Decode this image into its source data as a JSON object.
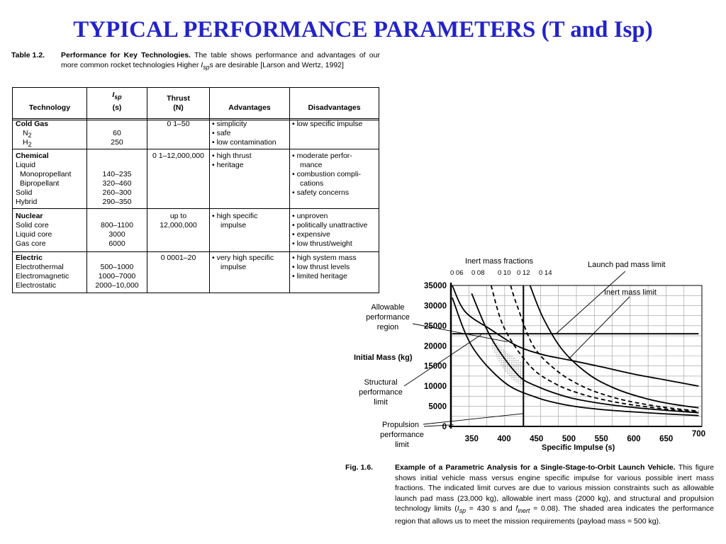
{
  "page": {
    "title": "TYPICAL PERFORMANCE PARAMETERS (T and Isp)"
  },
  "table": {
    "caption_number": "Table 1.2.",
    "caption_title": "Performance for Key Technologies.",
    "caption_text_1": "The table shows performance and advantages of our more common rocket technologies Higher ",
    "caption_isp_main": "I",
    "caption_isp_sub": "sp",
    "caption_text_2": "s are desirable [Larson and Wertz, 1992]",
    "headers": {
      "technology": "Technology",
      "isp_main": "I",
      "isp_sub": "sp",
      "isp_unit": "(s)",
      "thrust": "Thrust",
      "thrust_unit": "(N)",
      "advantages": "Advantages",
      "disadvantages": "Disadvantages"
    },
    "cold_gas": {
      "name": "Cold Gas",
      "n2_main": "N",
      "n2_sub": "2",
      "h2_main": "H",
      "h2_sub": "2",
      "n2_isp": "60",
      "h2_isp": "250",
      "thrust": "0 1–50",
      "adv_1": "• simplicity",
      "adv_2": "• safe",
      "adv_3": "• low contamination",
      "dis_1": "• low specific impulse"
    },
    "chemical": {
      "name": "Chemical",
      "row_1": "Liquid",
      "row_2": "Monopropellant",
      "row_3": "Bipropellant",
      "row_4": "Solid",
      "row_5": "Hybrid",
      "isp_2": "140–235",
      "isp_3": "320–460",
      "isp_4": "260–300",
      "isp_5": "290–350",
      "thrust": "0 1–12,000,000",
      "adv_1": "• high thrust",
      "adv_2": "• heritage",
      "dis_1": "• moderate perfor-",
      "dis_2": "mance",
      "dis_3": "• combustion compli-",
      "dis_4": "cations",
      "dis_5": "• safety concerns"
    },
    "nuclear": {
      "name": "Nuclear",
      "row_1": "Solid core",
      "row_2": "Liquid core",
      "row_3": "Gas core",
      "isp_1": "800–1100",
      "isp_2": "3000",
      "isp_3": "6000",
      "thrust_1": "up to",
      "thrust_2": "12,000,000",
      "adv_1": "• high specific",
      "adv_2": "impulse",
      "dis_1": "• unproven",
      "dis_2": "• politically unattractive",
      "dis_3": "• expensive",
      "dis_4": "• low thrust/weight"
    },
    "electric": {
      "name": "Electric",
      "row_1": "Electrothermal",
      "row_2": "Electromagnetic",
      "row_3": "Electrostatic",
      "isp_1": "500–1000",
      "isp_2": "1000–7000",
      "isp_3": "2000–10,000",
      "thrust": "0 0001–20",
      "adv_1": "• very high specific",
      "adv_2": "impulse",
      "dis_1": "• high system mass",
      "dis_2": "• low thrust levels",
      "dis_3": "• limited heritage"
    }
  },
  "figure": {
    "caption_number": "Fig. 1.6.",
    "caption_lead": "Example of a Parametric Analysis for a Single-Stage-to-Orbit Launch Vehicle.",
    "caption_text_1": " This figure shows initial vehicle mass versus engine specific impulse for various possible inert mass fractions. The indicated limit curves are due to various mission constraints such as allowable launch pad mass (23,000 kg), allowable inert mass (2000 kg), and structural and propulsion technology limits (",
    "caption_isp_main": "I",
    "caption_isp_sub": "sp",
    "caption_text_2": " = 430 s and ",
    "caption_f_main": "f",
    "caption_f_sub": "inert",
    "caption_text_3": " = 0.08). The shaded area indicates the performance region that allows us to meet the mission requirements (payload mass = 500 kg)."
  },
  "chart_data": {
    "type": "line",
    "xlabel": "Specific Impulse (s)",
    "ylabel": "Initial Mass (kg)",
    "xlim": [
      318,
      705
    ],
    "ylim": [
      0,
      35000
    ],
    "x_ticks": [
      "350",
      "400",
      "450",
      "500",
      "550",
      "600",
      "650",
      "700"
    ],
    "y_ticks": [
      "0",
      "5000",
      "10000",
      "15000",
      "20000",
      "25000",
      "30000",
      "35000"
    ],
    "grid": true,
    "series_group_label": "Inert mass fractions",
    "series": [
      {
        "name": "0 06",
        "style": "solid",
        "points": [
          [
            320,
            32000
          ],
          [
            350,
            20000
          ],
          [
            400,
            11000
          ],
          [
            450,
            7200
          ],
          [
            500,
            5200
          ],
          [
            550,
            4200
          ],
          [
            600,
            3600
          ],
          [
            650,
            3100
          ],
          [
            700,
            2700
          ]
        ]
      },
      {
        "name": "0 08",
        "style": "solid",
        "points": [
          [
            350,
            33000
          ],
          [
            380,
            22000
          ],
          [
            420,
            13000
          ],
          [
            450,
            10000
          ],
          [
            500,
            7200
          ],
          [
            550,
            5700
          ],
          [
            600,
            4700
          ],
          [
            650,
            4000
          ],
          [
            700,
            3400
          ]
        ]
      },
      {
        "name": "0 10",
        "style": "dashed",
        "points": [
          [
            380,
            35000
          ],
          [
            400,
            24500
          ],
          [
            440,
            15000
          ],
          [
            480,
            10500
          ],
          [
            520,
            8000
          ],
          [
            560,
            6400
          ],
          [
            600,
            5300
          ],
          [
            650,
            4300
          ],
          [
            700,
            3600
          ]
        ]
      },
      {
        "name": "0 12",
        "style": "dashed",
        "points": [
          [
            410,
            35000
          ],
          [
            420,
            30000
          ],
          [
            445,
            20000
          ],
          [
            480,
            14000
          ],
          [
            520,
            10000
          ],
          [
            560,
            7600
          ],
          [
            600,
            6000
          ],
          [
            650,
            4700
          ],
          [
            700,
            3800
          ]
        ]
      },
      {
        "name": "0 14",
        "style": "solid",
        "points": [
          [
            440,
            35000
          ],
          [
            460,
            27000
          ],
          [
            490,
            19000
          ],
          [
            530,
            13000
          ],
          [
            570,
            9500
          ],
          [
            610,
            7300
          ],
          [
            650,
            5800
          ],
          [
            700,
            4600
          ]
        ]
      },
      {
        "name": "Launch pad mass limit",
        "style": "solid",
        "points": [
          [
            320,
            23000
          ],
          [
            700,
            23000
          ]
        ]
      },
      {
        "name": "Inert mass limit",
        "style": "solid",
        "points": [
          [
            320,
            35000
          ],
          [
            340,
            28500
          ],
          [
            380,
            24000
          ],
          [
            420,
            20000
          ],
          [
            460,
            17800
          ],
          [
            500,
            16500
          ],
          [
            550,
            14800
          ],
          [
            600,
            13000
          ],
          [
            650,
            11500
          ],
          [
            700,
            10000
          ]
        ]
      },
      {
        "name": "Propulsion performance limit",
        "style": "solid",
        "points": [
          [
            430,
            0
          ],
          [
            430,
            35000
          ]
        ]
      }
    ],
    "annotations": [
      {
        "text": "Launch pad mass limit"
      },
      {
        "text": "Inert mass limit"
      },
      {
        "text_lines": [
          "Allowable",
          "performance",
          "region"
        ]
      },
      {
        "text_lines": [
          "Structural",
          "performance",
          "limit"
        ]
      },
      {
        "text_lines": [
          "Propulsion",
          "performance",
          "limit"
        ]
      }
    ]
  }
}
